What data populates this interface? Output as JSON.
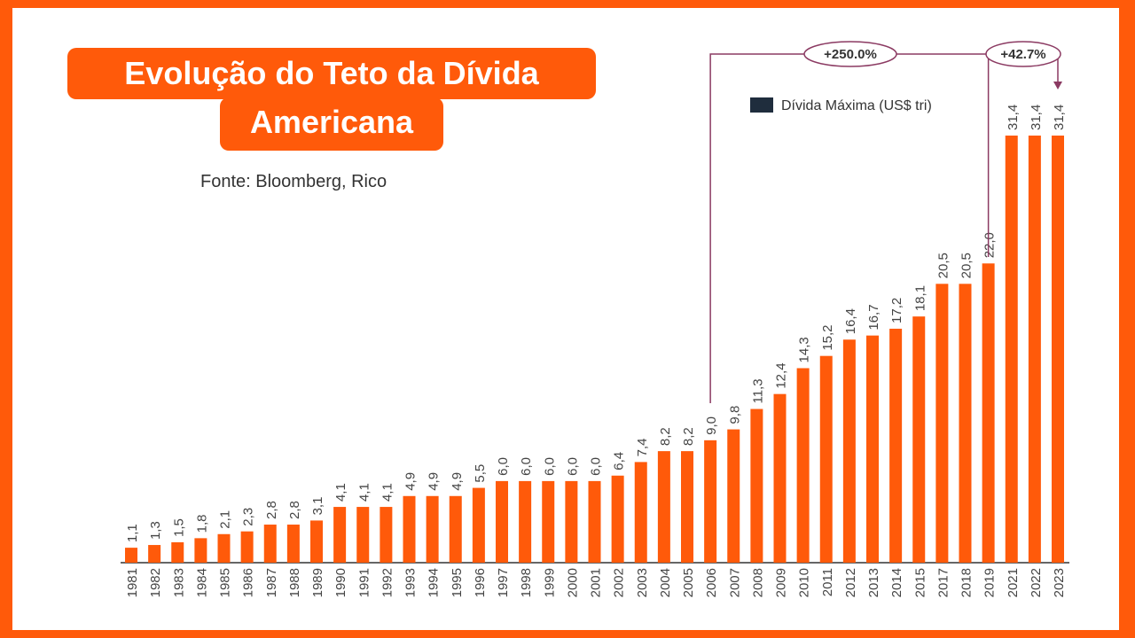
{
  "title_line1": "Evolução do Teto da Dívida",
  "title_line2": "Americana",
  "source": "Fonte: Bloomberg, Rico",
  "colors": {
    "bar": "#ff5a0a",
    "frame": "#ff5a0a",
    "annotation": "#8b3a62",
    "legend_swatch": "#1f2d3d",
    "axis": "#666666",
    "text": "#444444"
  },
  "chart_data": {
    "type": "bar",
    "title": "Evolução do Teto da Dívida Americana",
    "xlabel": "",
    "ylabel": "",
    "ylim": [
      0,
      31.4
    ],
    "grid": false,
    "legend": {
      "label": "Dívida Máxima (US$ tri)",
      "placement": "top-right"
    },
    "categories": [
      "1981",
      "1982",
      "1983",
      "1984",
      "1985",
      "1986",
      "1987",
      "1988",
      "1989",
      "1990",
      "1991",
      "1992",
      "1993",
      "1994",
      "1995",
      "1996",
      "1997",
      "1998",
      "1999",
      "2000",
      "2001",
      "2002",
      "2003",
      "2004",
      "2005",
      "2006",
      "2007",
      "2008",
      "2009",
      "2010",
      "2011",
      "2012",
      "2013",
      "2014",
      "2015",
      "2017",
      "2018",
      "2019",
      "2021",
      "2022",
      "2023"
    ],
    "values": [
      1.1,
      1.3,
      1.5,
      1.8,
      2.1,
      2.3,
      2.8,
      2.8,
      3.1,
      4.1,
      4.1,
      4.1,
      4.9,
      4.9,
      4.9,
      5.5,
      6.0,
      6.0,
      6.0,
      6.0,
      6.0,
      6.4,
      7.4,
      8.2,
      8.2,
      9.0,
      9.8,
      11.3,
      12.4,
      14.3,
      15.2,
      16.4,
      16.7,
      17.2,
      18.1,
      20.5,
      20.5,
      22.0,
      31.4,
      31.4,
      31.4
    ],
    "labels": [
      "1,1",
      "1,3",
      "1,5",
      "1,8",
      "2,1",
      "2,3",
      "2,8",
      "2,8",
      "3,1",
      "4,1",
      "4,1",
      "4,1",
      "4,9",
      "4,9",
      "4,9",
      "5,5",
      "6,0",
      "6,0",
      "6,0",
      "6,0",
      "6,0",
      "6,4",
      "7,4",
      "8,2",
      "8,2",
      "9,0",
      "9,8",
      "11,3",
      "12,4",
      "14,3",
      "15,2",
      "16,4",
      "16,7",
      "17,2",
      "18,1",
      "20,5",
      "20,5",
      "22,0",
      "31,4",
      "31,4",
      "31,4"
    ],
    "annotations": [
      {
        "text": "+250.0%",
        "from": "2006",
        "to": "2023"
      },
      {
        "text": "+42.7%",
        "from": "2019",
        "to": "2023"
      }
    ]
  }
}
